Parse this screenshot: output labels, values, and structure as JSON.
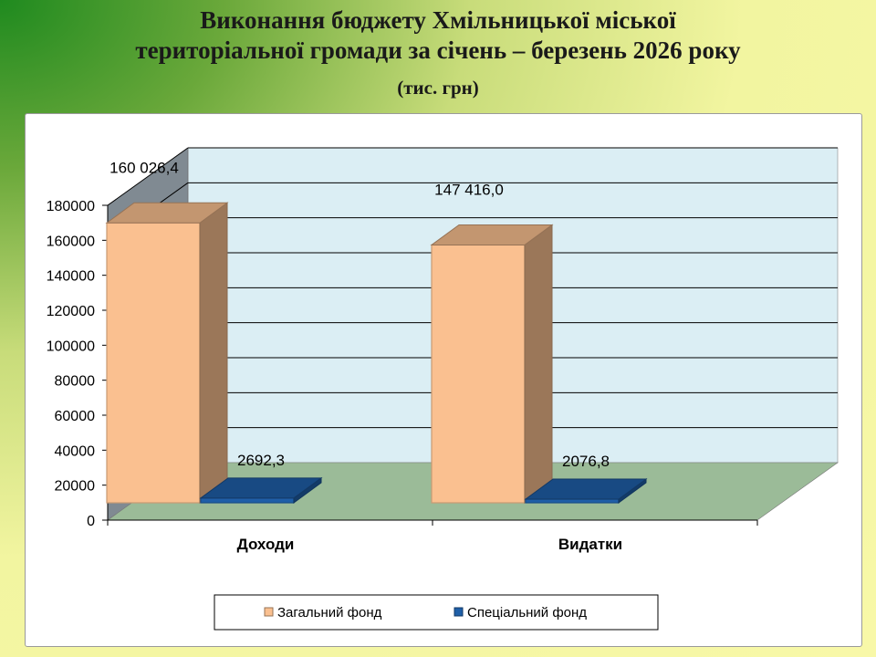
{
  "slide": {
    "title_line1": "Виконання бюджету Хмільницької міської",
    "title_line2": "територіальної громади за січень – березень 2026 року",
    "subtitle": "(тис. грн)"
  },
  "chart_data": {
    "type": "bar",
    "categories": [
      "Доходи",
      "Видатки"
    ],
    "series": [
      {
        "name": "Загальний фонд",
        "values": [
          160026.4,
          147416.0
        ],
        "labels": [
          "160 026,4",
          "147 416,0"
        ],
        "color": "#FAC090"
      },
      {
        "name": "Спеціальний фонд",
        "values": [
          2692.3,
          2076.8
        ],
        "labels": [
          "2692,3",
          "2076,8"
        ],
        "color": "#1F5FA8"
      }
    ],
    "yticks": [
      "0",
      "20000",
      "40000",
      "60000",
      "80000",
      "100000",
      "120000",
      "140000",
      "160000",
      "180000"
    ],
    "ylim": [
      0,
      180000
    ],
    "grid": true,
    "legend": "bottom",
    "colors": {
      "back_wall": "#DBEEF4",
      "side_wall": "#808A92",
      "floor": "#9BBB98"
    }
  }
}
